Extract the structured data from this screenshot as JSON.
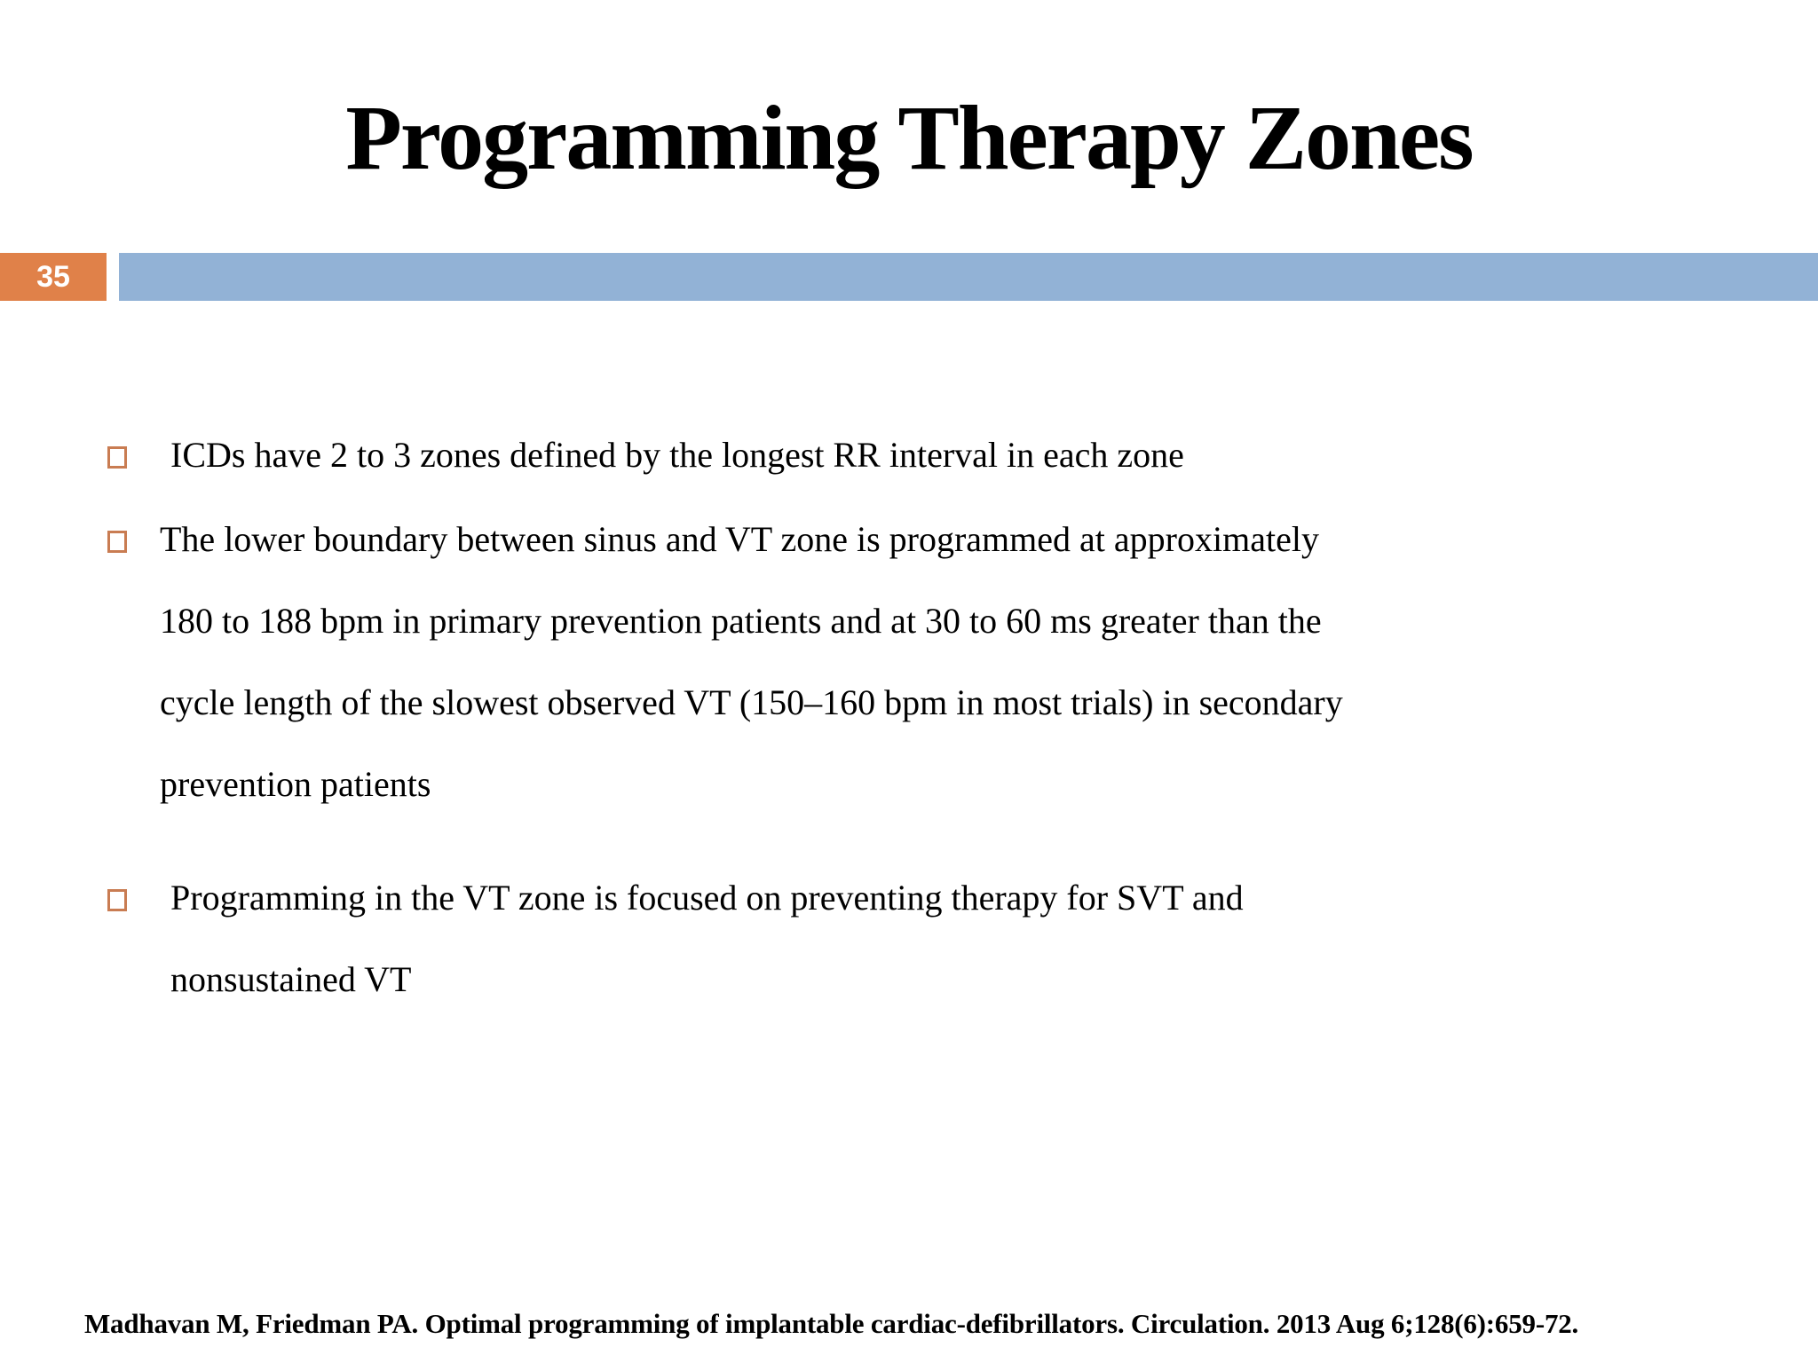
{
  "slide": {
    "title": "Programming Therapy Zones",
    "slide_number": "35",
    "bullets": [
      {
        "lines": [
          "ICDs have 2 to 3 zones defined by the longest RR interval in each zone"
        ]
      },
      {
        "lines": [
          "The lower boundary between sinus and VT zone is programmed at approximately",
          "180 to 188 bpm in primary prevention patients and at 30 to 60 ms greater than the",
          "cycle length of the slowest observed VT (150–160 bpm in most trials) in secondary",
          "prevention patients"
        ]
      },
      {
        "lines": [
          "Programming in the VT zone is focused on preventing therapy for SVT and",
          "nonsustained VT"
        ]
      }
    ],
    "citation": "Madhavan M, Friedman PA. Optimal programming of implantable cardiac-defibrillators. Circulation. 2013 Aug 6;128(6):659-72.",
    "colors": {
      "slide_number_bg": "#E08149",
      "accent_bar": "#92B2D6",
      "bullet_outline": "#C97C52"
    }
  }
}
